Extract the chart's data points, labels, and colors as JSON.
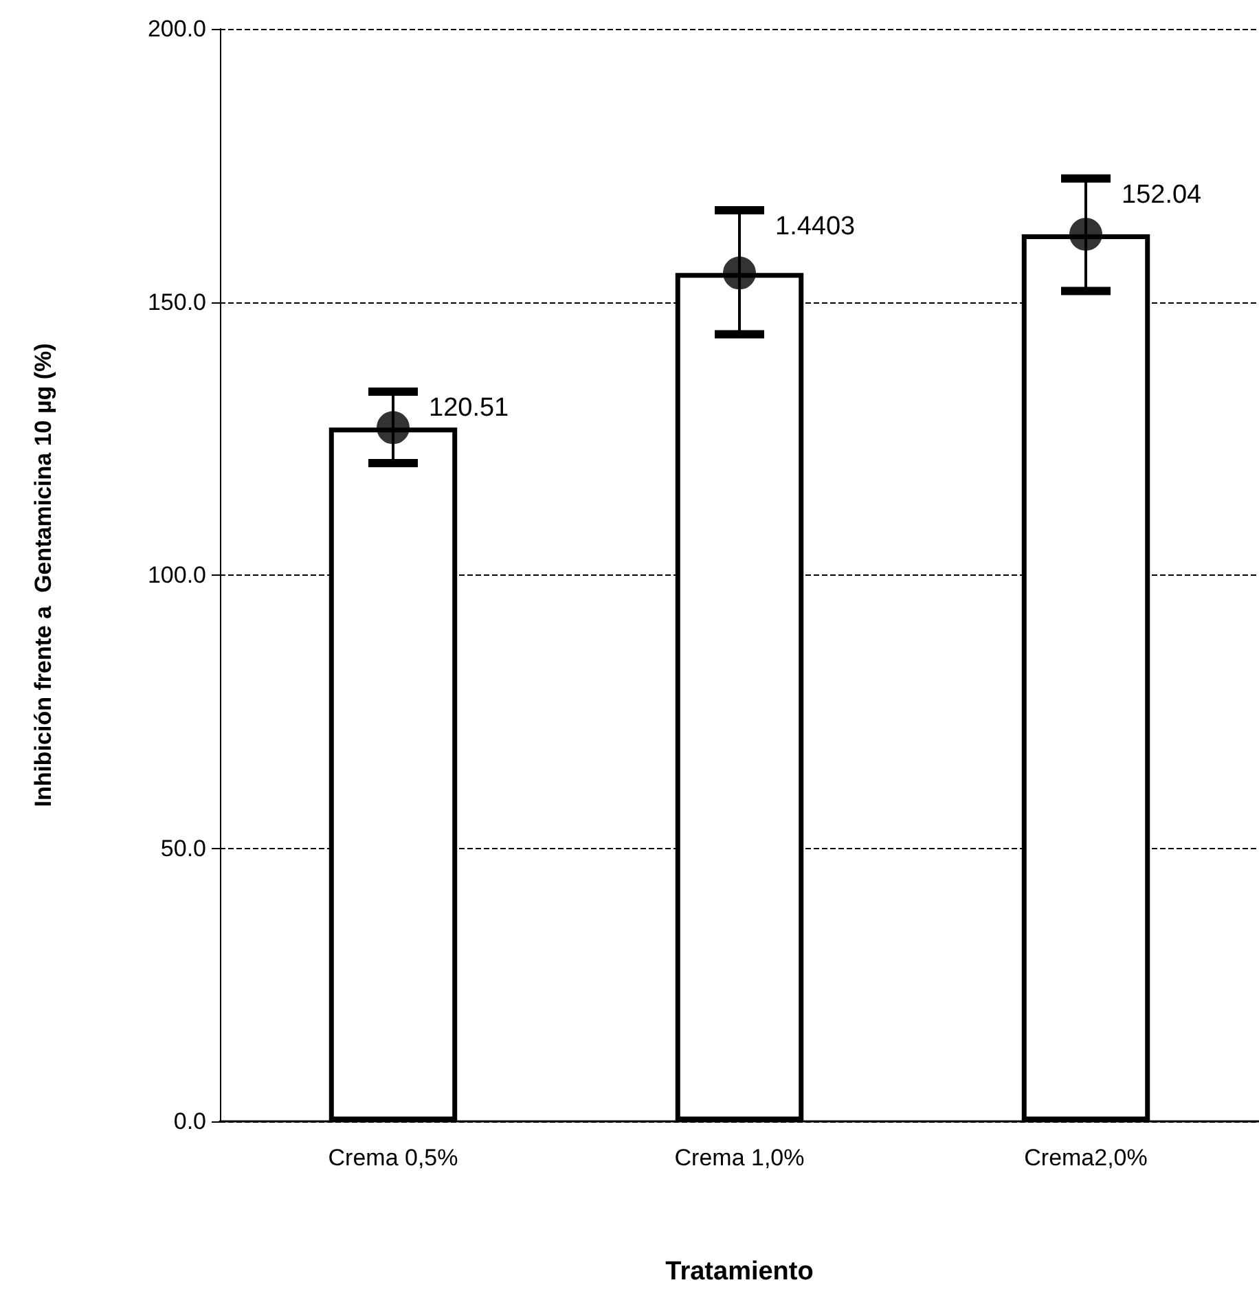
{
  "chart_data": {
    "type": "bar",
    "xlabel": "Tratamiento",
    "ylabel": "Inhibición frente a  Gentamicina 10 µg (%)",
    "categories": [
      "Crema 0,5%",
      "Crema 1,0%",
      "Crema2,0%"
    ],
    "series": [
      {
        "color": "#ffffff",
        "values": [
          127.0,
          155.3,
          162.4
        ]
      },
      {
        "type": "scatter",
        "color": "#000000",
        "x": [
          "Crema 0,5%",
          "Crema 1,0%",
          "Crema2,0%"
        ],
        "values": [
          127.0,
          155.3,
          162.4
        ],
        "errors": [
          [
            120.5,
            133.6
          ],
          [
            144.1,
            166.8
          ],
          [
            152.0,
            172.6
          ]
        ]
      }
    ],
    "ylim": [
      0,
      200
    ],
    "yticks": [
      {
        "value": 0,
        "label": "0.0"
      },
      {
        "value": 50,
        "label": "50.0"
      },
      {
        "value": 100,
        "label": "100.0"
      },
      {
        "value": 150,
        "label": "150.0"
      },
      {
        "value": 200,
        "label": "200.0"
      }
    ],
    "grid": "y",
    "marker": "circle",
    "annotations": [
      "120.51",
      "1.4403",
      "152.04"
    ]
  }
}
